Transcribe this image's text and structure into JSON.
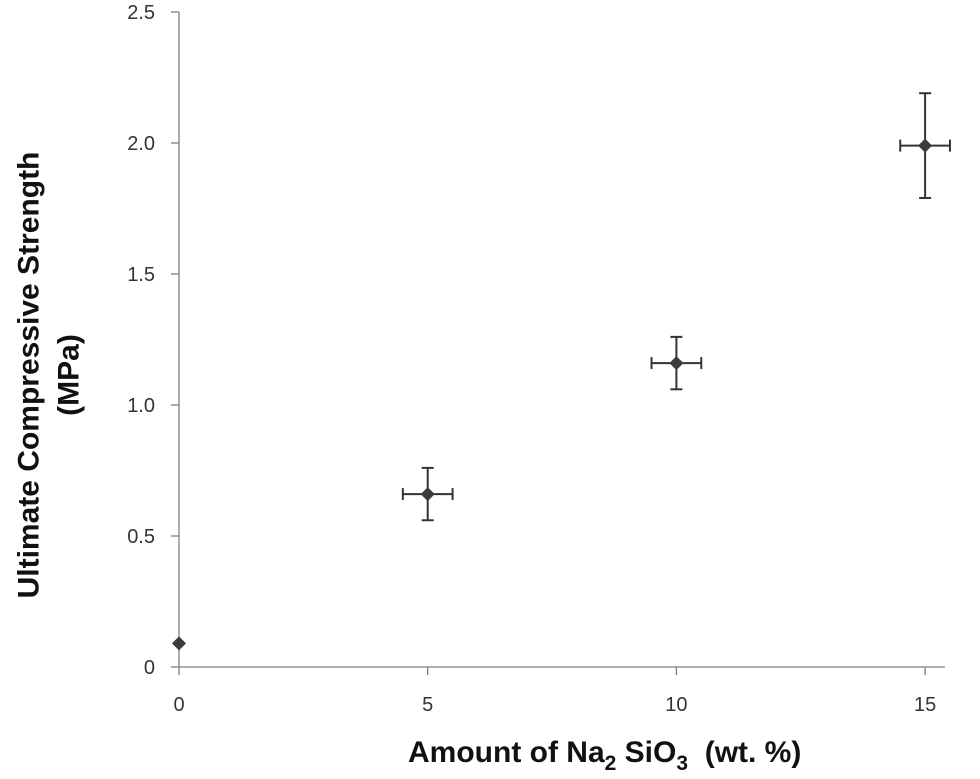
{
  "chart_data": {
    "type": "scatter",
    "title": "",
    "xlabel_parts": [
      "Amount of Na",
      "2",
      " SiO",
      "3",
      "  (wt. %)"
    ],
    "ylabel_lines": [
      "Ultimate Compressive Strength",
      "(MPa)"
    ],
    "xlim": [
      0,
      15.4
    ],
    "ylim": [
      0,
      2.5
    ],
    "x_ticks": [
      0,
      5,
      10,
      15
    ],
    "x_tick_labels": [
      "0",
      "5",
      "10",
      "15"
    ],
    "y_ticks": [
      0,
      0.5,
      1.0,
      1.5,
      2.0,
      2.5
    ],
    "y_tick_labels": [
      "0",
      "0.5",
      "1.0",
      "1.5",
      "2.0",
      "2.5"
    ],
    "grid": false,
    "legend": "none",
    "marker": "diamond",
    "marker_color": "#3b3b3b",
    "points": [
      {
        "x": 0,
        "y": 0.09,
        "x_err": 0,
        "y_err": 0
      },
      {
        "x": 5,
        "y": 0.66,
        "x_err": 0.5,
        "y_err": 0.1
      },
      {
        "x": 10,
        "y": 1.16,
        "x_err": 0.5,
        "y_err": 0.1
      },
      {
        "x": 15,
        "y": 1.99,
        "x_err": 0.5,
        "y_err": 0.2
      }
    ]
  }
}
